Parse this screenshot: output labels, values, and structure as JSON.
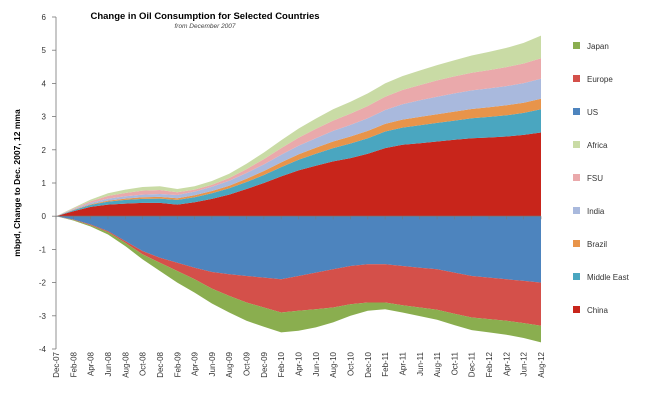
{
  "chart_data": {
    "type": "area",
    "title": "Change in Oil Consumption for Selected Countries",
    "subtitle": "from December 2007",
    "xlabel": "",
    "ylabel": "mbpd, Change to Dec. 2007, 12 mma",
    "ylim": [
      -4,
      6
    ],
    "yticks": [
      -4,
      -3,
      -2,
      -1,
      0,
      1,
      2,
      3,
      4,
      5,
      6
    ],
    "grid": false,
    "legend_position": "right",
    "x": [
      "Dec-07",
      "Feb-08",
      "Apr-08",
      "Jun-08",
      "Aug-08",
      "Oct-08",
      "Dec-08",
      "Feb-09",
      "Apr-09",
      "Jun-09",
      "Aug-09",
      "Oct-09",
      "Dec-09",
      "Feb-10",
      "Apr-10",
      "Jun-10",
      "Aug-10",
      "Oct-10",
      "Dec-10",
      "Feb-11",
      "Apr-11",
      "Jun-11",
      "Aug-11",
      "Oct-11",
      "Dec-11",
      "Feb-12",
      "Apr-12",
      "Jun-12",
      "Aug-12"
    ],
    "positive_series": [
      {
        "name": "China",
        "color": "#c8251b",
        "values": [
          0,
          0.15,
          0.28,
          0.35,
          0.38,
          0.4,
          0.4,
          0.35,
          0.42,
          0.52,
          0.65,
          0.82,
          1.0,
          1.2,
          1.38,
          1.52,
          1.65,
          1.75,
          1.88,
          2.05,
          2.15,
          2.2,
          2.25,
          2.3,
          2.35,
          2.37,
          2.4,
          2.45,
          2.52
        ]
      },
      {
        "name": "Middle East",
        "color": "#4aa6c0",
        "values": [
          0,
          0.03,
          0.06,
          0.09,
          0.11,
          0.12,
          0.13,
          0.14,
          0.15,
          0.17,
          0.19,
          0.21,
          0.24,
          0.28,
          0.32,
          0.36,
          0.4,
          0.44,
          0.47,
          0.5,
          0.52,
          0.54,
          0.56,
          0.58,
          0.6,
          0.62,
          0.64,
          0.66,
          0.7
        ]
      },
      {
        "name": "Brazil",
        "color": "#e8944a",
        "values": [
          0,
          0.01,
          0.02,
          0.03,
          0.04,
          0.05,
          0.05,
          0.05,
          0.06,
          0.07,
          0.08,
          0.1,
          0.12,
          0.14,
          0.16,
          0.18,
          0.2,
          0.21,
          0.22,
          0.23,
          0.24,
          0.25,
          0.26,
          0.27,
          0.28,
          0.29,
          0.3,
          0.31,
          0.32
        ]
      },
      {
        "name": "India",
        "color": "#a9b9dd",
        "values": [
          0,
          0.02,
          0.04,
          0.06,
          0.07,
          0.08,
          0.09,
          0.1,
          0.11,
          0.13,
          0.15,
          0.17,
          0.2,
          0.23,
          0.26,
          0.29,
          0.32,
          0.35,
          0.38,
          0.42,
          0.46,
          0.5,
          0.53,
          0.55,
          0.56,
          0.57,
          0.58,
          0.59,
          0.6
        ]
      },
      {
        "name": "FSU",
        "color": "#eaa9ab",
        "values": [
          0,
          0.02,
          0.05,
          0.08,
          0.1,
          0.12,
          0.12,
          0.08,
          0.06,
          0.06,
          0.08,
          0.12,
          0.16,
          0.2,
          0.24,
          0.28,
          0.31,
          0.34,
          0.37,
          0.4,
          0.43,
          0.46,
          0.49,
          0.51,
          0.53,
          0.55,
          0.57,
          0.59,
          0.62
        ]
      },
      {
        "name": "Africa",
        "color": "#c9dba5",
        "values": [
          0,
          0.02,
          0.05,
          0.08,
          0.1,
          0.11,
          0.11,
          0.1,
          0.1,
          0.11,
          0.13,
          0.16,
          0.2,
          0.24,
          0.28,
          0.31,
          0.34,
          0.36,
          0.38,
          0.4,
          0.42,
          0.44,
          0.46,
          0.49,
          0.52,
          0.55,
          0.58,
          0.62,
          0.68
        ]
      }
    ],
    "negative_series": [
      {
        "name": "US",
        "color": "#4d84be",
        "values": [
          0,
          -0.1,
          -0.25,
          -0.45,
          -0.75,
          -1.05,
          -1.25,
          -1.4,
          -1.55,
          -1.68,
          -1.75,
          -1.8,
          -1.85,
          -1.9,
          -1.8,
          -1.7,
          -1.6,
          -1.5,
          -1.45,
          -1.45,
          -1.5,
          -1.55,
          -1.6,
          -1.7,
          -1.8,
          -1.85,
          -1.9,
          -1.95,
          -2.0
        ]
      },
      {
        "name": "Europe",
        "color": "#d4504a",
        "values": [
          0,
          -0.01,
          -0.02,
          -0.03,
          -0.05,
          -0.1,
          -0.15,
          -0.25,
          -0.35,
          -0.5,
          -0.65,
          -0.8,
          -0.9,
          -1.0,
          -1.05,
          -1.1,
          -1.15,
          -1.15,
          -1.15,
          -1.15,
          -1.18,
          -1.2,
          -1.22,
          -1.24,
          -1.25,
          -1.25,
          -1.25,
          -1.27,
          -1.3
        ]
      },
      {
        "name": "Japan",
        "color": "#8aae4f",
        "values": [
          0,
          -0.02,
          -0.04,
          -0.07,
          -0.1,
          -0.15,
          -0.25,
          -0.35,
          -0.4,
          -0.45,
          -0.5,
          -0.55,
          -0.58,
          -0.6,
          -0.6,
          -0.55,
          -0.45,
          -0.35,
          -0.25,
          -0.2,
          -0.22,
          -0.26,
          -0.3,
          -0.34,
          -0.38,
          -0.4,
          -0.42,
          -0.45,
          -0.5
        ]
      }
    ],
    "legend": [
      "Japan",
      "Europe",
      "US",
      "Africa",
      "FSU",
      "India",
      "Brazil",
      "Middle East",
      "China"
    ]
  }
}
